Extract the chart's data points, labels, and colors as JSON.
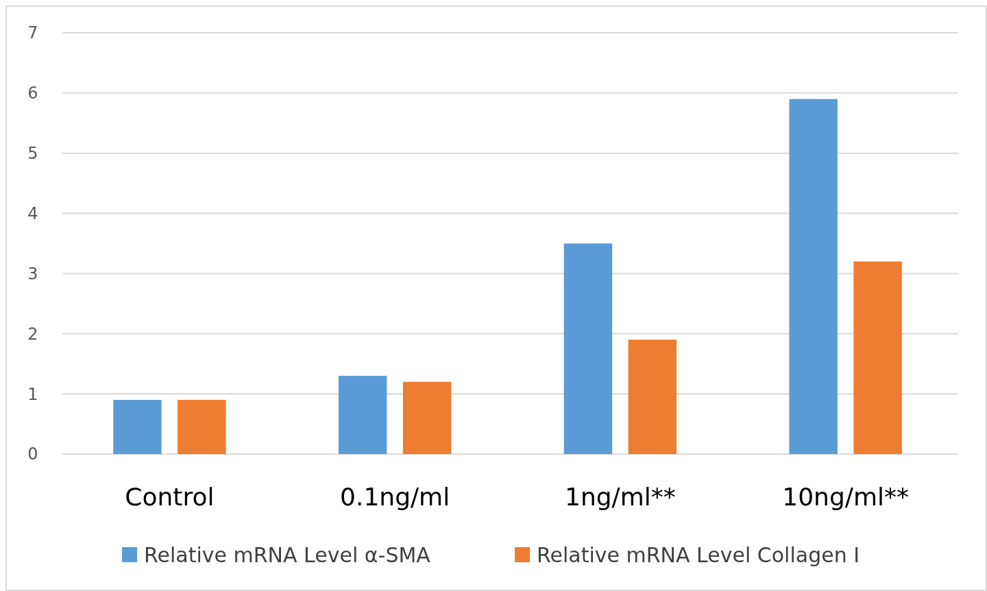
{
  "chart_data": {
    "type": "bar",
    "categories": [
      "Control",
      "0.1ng/ml",
      "1ng/ml**",
      "10ng/ml**"
    ],
    "series": [
      {
        "name": "Relative mRNA Level α-SMA",
        "color": "#5b9bd5",
        "values": [
          0.9,
          1.3,
          3.5,
          5.9
        ]
      },
      {
        "name": "Relative mRNA Level Collagen I",
        "color": "#ed7d31",
        "values": [
          0.9,
          1.2,
          1.9,
          3.2
        ]
      }
    ],
    "ylim": [
      0,
      7
    ],
    "yticks": [
      0,
      1,
      2,
      3,
      4,
      5,
      6,
      7
    ],
    "grid": "y",
    "legend": "bottom"
  }
}
